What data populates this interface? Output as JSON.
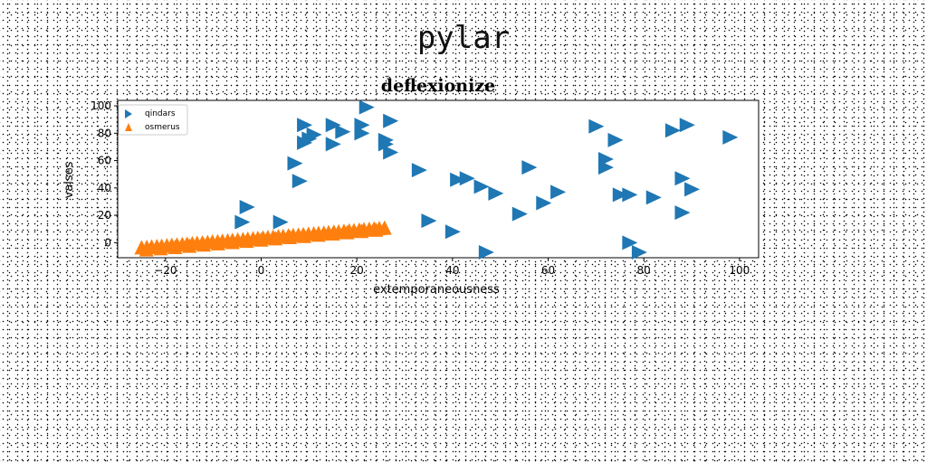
{
  "figure_title": "pylar",
  "colors": {
    "series1": "#1f77b4",
    "series2": "#ff7f0e"
  },
  "chart_data": {
    "type": "scatter",
    "title": "deflexionize",
    "xlabel": "extemporaneousness",
    "ylabel": "valses",
    "xlim": [
      -30,
      104
    ],
    "ylim": [
      -11,
      104
    ],
    "xticks": [
      -20,
      0,
      20,
      40,
      60,
      80,
      100
    ],
    "yticks": [
      0,
      20,
      40,
      60,
      80,
      100
    ],
    "grid": false,
    "legend_position": "top-left",
    "series": [
      {
        "name": "qindars",
        "marker": "triangle-right",
        "points": [
          [
            -4,
            15
          ],
          [
            -3,
            26
          ],
          [
            4,
            15
          ],
          [
            7,
            58
          ],
          [
            8,
            45
          ],
          [
            9,
            86
          ],
          [
            9,
            73
          ],
          [
            10,
            76
          ],
          [
            11,
            79
          ],
          [
            15,
            86
          ],
          [
            15,
            72
          ],
          [
            17,
            81
          ],
          [
            21,
            86
          ],
          [
            21,
            80
          ],
          [
            22,
            99
          ],
          [
            26,
            75
          ],
          [
            26,
            72
          ],
          [
            27,
            66
          ],
          [
            27,
            89
          ],
          [
            33,
            53
          ],
          [
            35,
            16
          ],
          [
            40,
            8
          ],
          [
            41,
            46
          ],
          [
            43,
            47
          ],
          [
            46,
            41
          ],
          [
            47,
            -7
          ],
          [
            49,
            36
          ],
          [
            54,
            21
          ],
          [
            56,
            55
          ],
          [
            59,
            29
          ],
          [
            62,
            37
          ],
          [
            70,
            85
          ],
          [
            72,
            61
          ],
          [
            72,
            55
          ],
          [
            74,
            75
          ],
          [
            75,
            35
          ],
          [
            77,
            35
          ],
          [
            77,
            0
          ],
          [
            79,
            -7
          ],
          [
            82,
            33
          ],
          [
            86,
            82
          ],
          [
            88,
            47
          ],
          [
            88,
            22
          ],
          [
            89,
            86
          ],
          [
            90,
            39
          ],
          [
            98,
            77
          ]
        ]
      },
      {
        "name": "osmerus",
        "marker": "triangle-up",
        "points": [
          [
            -25.0,
            -4.0
          ],
          [
            -23.9,
            -3.7
          ],
          [
            -22.9,
            -3.4
          ],
          [
            -21.8,
            -3.1
          ],
          [
            -20.8,
            -2.8
          ],
          [
            -19.7,
            -2.5
          ],
          [
            -18.7,
            -2.2
          ],
          [
            -17.6,
            -1.9
          ],
          [
            -16.5,
            -1.6
          ],
          [
            -15.5,
            -1.3
          ],
          [
            -14.4,
            -1.0
          ],
          [
            -13.4,
            -0.7
          ],
          [
            -12.3,
            -0.4
          ],
          [
            -11.2,
            -0.1
          ],
          [
            -10.2,
            0.2
          ],
          [
            -9.1,
            0.5
          ],
          [
            -8.1,
            0.8
          ],
          [
            -7.0,
            1.1
          ],
          [
            -6.0,
            1.4
          ],
          [
            -4.9,
            1.7
          ],
          [
            -3.8,
            2.0
          ],
          [
            -2.8,
            2.3
          ],
          [
            -1.7,
            2.6
          ],
          [
            -0.7,
            2.9
          ],
          [
            0.4,
            3.2
          ],
          [
            1.4,
            3.5
          ],
          [
            2.5,
            3.8
          ],
          [
            3.6,
            4.1
          ],
          [
            4.6,
            4.4
          ],
          [
            5.7,
            4.7
          ],
          [
            6.7,
            5.0
          ],
          [
            7.8,
            5.3
          ],
          [
            8.8,
            5.6
          ],
          [
            9.9,
            5.9
          ],
          [
            11.0,
            6.2
          ],
          [
            12.0,
            6.5
          ],
          [
            13.1,
            6.8
          ],
          [
            14.1,
            7.1
          ],
          [
            15.2,
            7.4
          ],
          [
            16.2,
            7.7
          ],
          [
            17.3,
            8.0
          ],
          [
            18.4,
            8.3
          ],
          [
            19.4,
            8.6
          ],
          [
            20.5,
            8.9
          ],
          [
            21.5,
            9.2
          ],
          [
            22.6,
            9.5
          ],
          [
            23.6,
            9.8
          ],
          [
            24.7,
            10.1
          ],
          [
            25.8,
            10.4
          ],
          [
            -24.0,
            -5.5
          ],
          [
            -21.0,
            -4.6
          ],
          [
            -18.0,
            -3.7
          ],
          [
            -15.0,
            -2.8
          ],
          [
            -12.0,
            -1.9
          ],
          [
            -9.0,
            -1.0
          ],
          [
            -6.0,
            -0.1
          ],
          [
            -3.0,
            0.8
          ],
          [
            0.0,
            1.7
          ],
          [
            3.0,
            2.6
          ],
          [
            6.0,
            3.5
          ],
          [
            9.0,
            4.4
          ],
          [
            12.0,
            5.3
          ],
          [
            15.0,
            6.2
          ],
          [
            18.0,
            7.1
          ],
          [
            21.0,
            8.0
          ],
          [
            24.0,
            8.9
          ]
        ]
      }
    ]
  }
}
